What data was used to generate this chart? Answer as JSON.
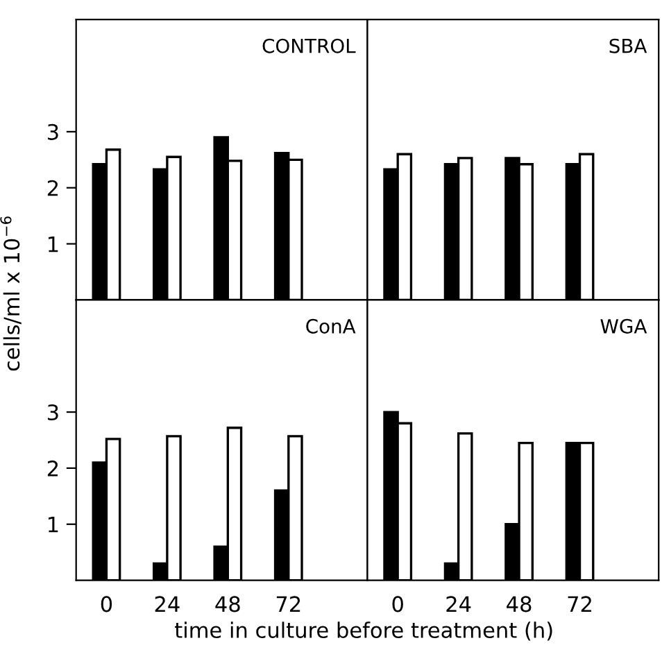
{
  "chart_data": [
    {
      "type": "bar",
      "title": "CONTROL",
      "ylabel": "cells/ml x 10$^{−6}$",
      "categories": [
        "0",
        "24",
        "48",
        "72"
      ],
      "ylim": [
        0,
        5
      ],
      "yticks": [
        1,
        2,
        3
      ],
      "tick_labels": "y",
      "grid": false,
      "legend": false,
      "series": [
        {
          "color": "#000000",
          "values": [
            2.42,
            2.33,
            2.9,
            2.62
          ]
        },
        {
          "color": "#ffffff",
          "values": [
            2.68,
            2.55,
            2.48,
            2.5
          ]
        }
      ]
    },
    {
      "type": "bar",
      "title": "SBA",
      "categories": [
        "0",
        "24",
        "48",
        "72"
      ],
      "ylim": [
        0,
        5
      ],
      "yticks": [
        1,
        2,
        3
      ],
      "tick_labels": false,
      "grid": false,
      "legend": false,
      "series": [
        {
          "color": "#000000",
          "values": [
            2.33,
            2.42,
            2.53,
            2.42
          ]
        },
        {
          "color": "#ffffff",
          "values": [
            2.6,
            2.53,
            2.42,
            2.6
          ]
        }
      ]
    },
    {
      "type": "bar",
      "title": "ConA",
      "xlabel": "time in culture before treatment (h)",
      "categories": [
        "0",
        "24",
        "48",
        "72"
      ],
      "ylim": [
        0,
        5
      ],
      "yticks": [
        1,
        2,
        3
      ],
      "grid": false,
      "legend": false,
      "series": [
        {
          "color": "#000000",
          "values": [
            2.1,
            0.3,
            0.6,
            1.6
          ]
        },
        {
          "color": "#ffffff",
          "values": [
            2.52,
            2.57,
            2.72,
            2.57
          ]
        }
      ]
    },
    {
      "type": "bar",
      "title": "WGA",
      "categories": [
        "0",
        "24",
        "48",
        "72"
      ],
      "ylim": [
        0,
        5
      ],
      "yticks": [
        1,
        2,
        3
      ],
      "tick_labels": "x",
      "grid": false,
      "legend": false,
      "series": [
        {
          "color": "#000000",
          "values": [
            3.0,
            0.3,
            1.0,
            2.45
          ]
        },
        {
          "color": "#ffffff",
          "values": [
            2.8,
            2.62,
            2.45,
            2.45
          ]
        }
      ]
    }
  ]
}
